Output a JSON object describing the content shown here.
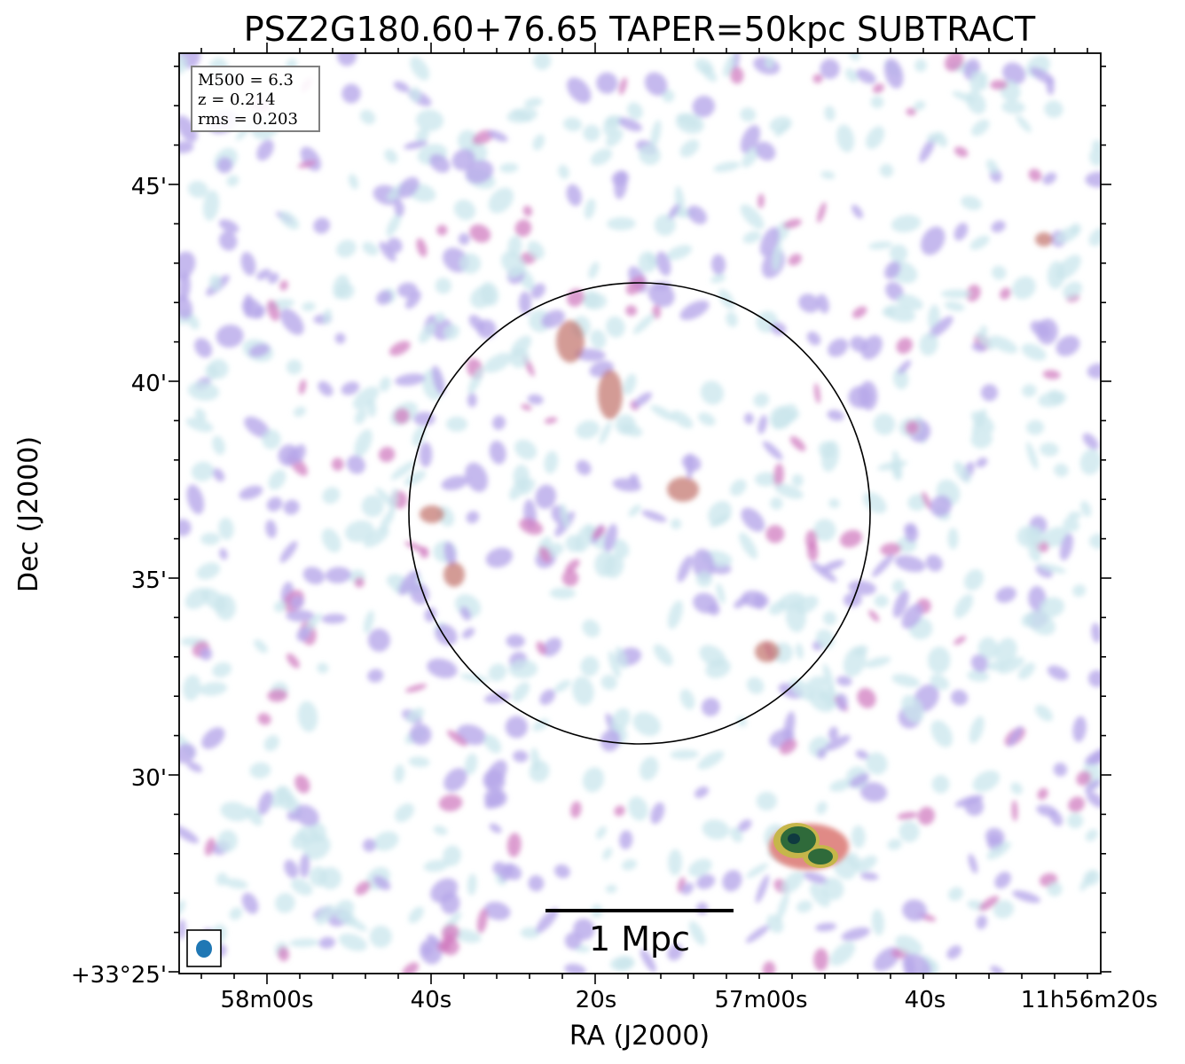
{
  "figure": {
    "title": "PSZ2G180.60+76.65 TAPER=50kpc SUBTRACT",
    "xlabel": "RA (J2000)",
    "ylabel": "Dec (J2000)"
  },
  "info_box": {
    "line1": "M500 = 6.3",
    "line2": "z = 0.214",
    "line3": "rms = 0.203"
  },
  "axes": {
    "x_ticks": [
      "58m00s",
      "40s",
      "20s",
      "57m00s",
      "40s",
      "11h56m20s"
    ],
    "y_ticks": [
      "45'",
      "40'",
      "35'",
      "30'",
      "+33°25'"
    ]
  },
  "scale_bar": {
    "label": "1 Mpc"
  },
  "colors": {
    "background": "#ffffff",
    "circle": "#000000",
    "beam": "#1f77b4",
    "emission_low": "#c9e6ec",
    "emission_mid": "#b7a8ea",
    "emission_high": "#d07cc0",
    "emission_peak": "#c0706a",
    "source_core": "#2f6a3a"
  }
}
